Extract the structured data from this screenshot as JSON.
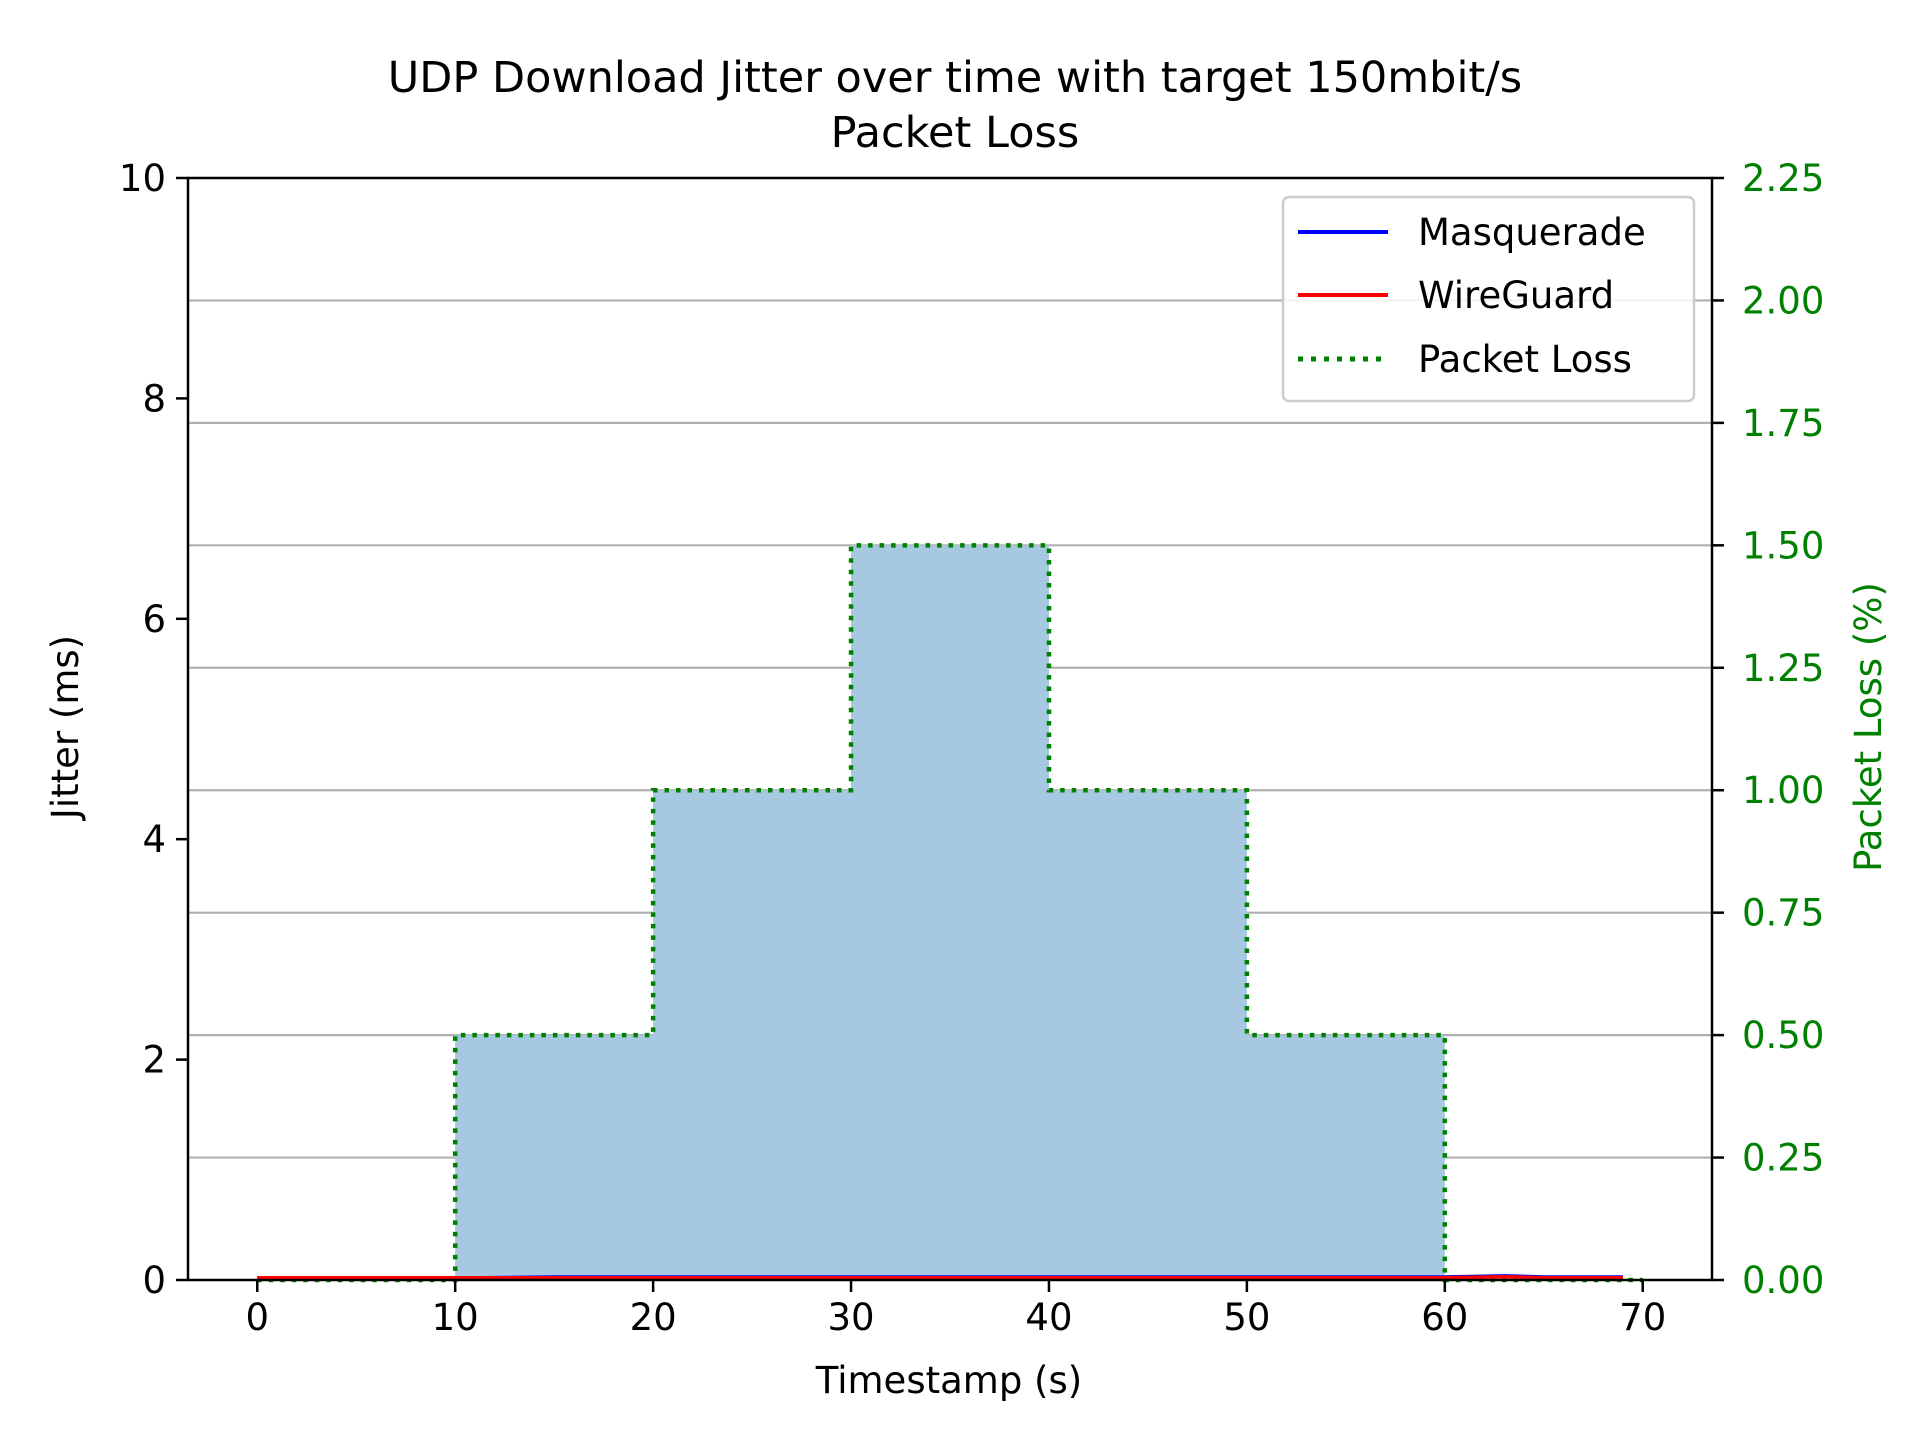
{
  "chart_data": {
    "type": "line",
    "title_line1": "UDP Download Jitter over time with target 150mbit/s",
    "title_line2": "Packet Loss",
    "xlabel": "Timestamp (s)",
    "ylabel_left": "Jitter (ms)",
    "ylabel_right": "Packet Loss (%)",
    "xlim": [
      -3.5,
      73.5
    ],
    "ylim_left": [
      0,
      10
    ],
    "ylim_right": [
      0,
      2.25
    ],
    "x_ticks": [
      0,
      10,
      20,
      30,
      40,
      50,
      60,
      70
    ],
    "y_left_ticks": [
      0,
      2,
      4,
      6,
      8,
      10
    ],
    "y_right_ticks": [
      "0.00",
      "0.25",
      "0.50",
      "0.75",
      "1.00",
      "1.25",
      "1.50",
      "1.75",
      "2.00",
      "2.25"
    ],
    "grid": "horizontal-right-axis",
    "legend_position": "top-right",
    "series": [
      {
        "name": "Masquerade",
        "axis": "left",
        "color": "#0000ff",
        "style": "solid",
        "x": [
          0,
          5,
          10,
          15,
          20,
          25,
          30,
          35,
          40,
          45,
          50,
          55,
          60,
          63,
          65,
          69
        ],
        "y": [
          0.02,
          0.02,
          0.02,
          0.03,
          0.03,
          0.03,
          0.03,
          0.03,
          0.03,
          0.03,
          0.03,
          0.03,
          0.03,
          0.04,
          0.03,
          0.03
        ]
      },
      {
        "name": "WireGuard",
        "axis": "left",
        "color": "#ff0000",
        "style": "solid",
        "x": [
          0,
          5,
          10,
          15,
          20,
          25,
          30,
          35,
          40,
          45,
          50,
          55,
          60,
          63,
          65,
          69
        ],
        "y": [
          0.02,
          0.02,
          0.02,
          0.02,
          0.02,
          0.02,
          0.02,
          0.02,
          0.02,
          0.02,
          0.02,
          0.02,
          0.02,
          0.03,
          0.02,
          0.02
        ]
      },
      {
        "name": "Packet Loss",
        "axis": "right",
        "color": "#008000",
        "style": "dotted",
        "fill": "#a6c8e0",
        "steps": "post",
        "x": [
          0,
          10,
          20,
          30,
          40,
          50,
          60,
          70
        ],
        "y": [
          0.0,
          0.5,
          1.0,
          1.5,
          1.0,
          0.5,
          0.0,
          0.0
        ]
      }
    ]
  },
  "colors": {
    "axis": "#000000",
    "grid": "#b0b0b0",
    "right_axis": "#008000",
    "fill": "#a6c8e0"
  }
}
